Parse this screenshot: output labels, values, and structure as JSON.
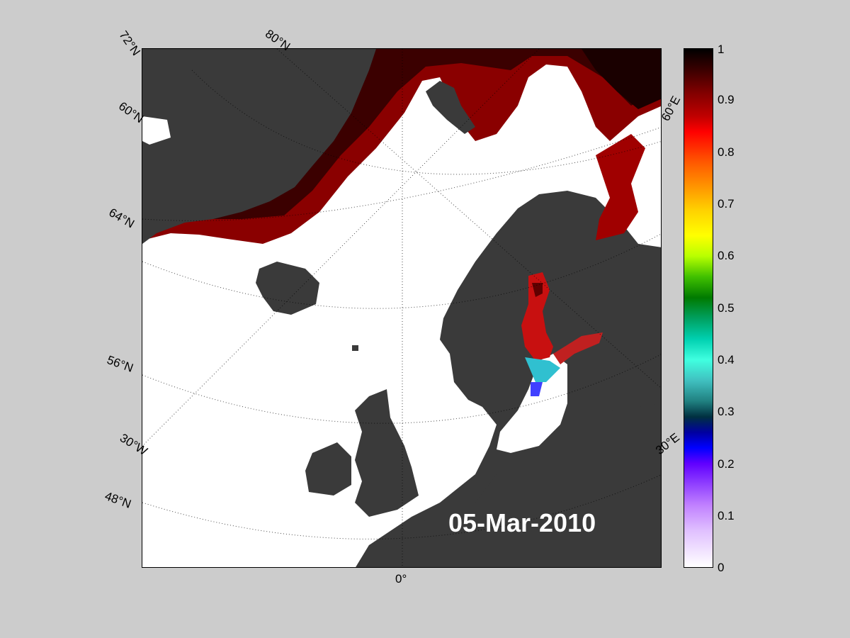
{
  "map": {
    "date": "05-Mar-2010",
    "lat_labels": [
      "72°N",
      "80°N",
      "60°N",
      "64°N",
      "56°N",
      "48°N"
    ],
    "lon_labels": [
      "60°E",
      "30°E",
      "30°W",
      "0°"
    ],
    "colors": {
      "land": "#3a3a3a",
      "sea": "#ffffff",
      "frame": "#cccccc"
    }
  },
  "colorbar": {
    "ticks": [
      "1",
      "0.9",
      "0.8",
      "0.7",
      "0.6",
      "0.5",
      "0.4",
      "0.3",
      "0.2",
      "0.1",
      "0"
    ]
  }
}
